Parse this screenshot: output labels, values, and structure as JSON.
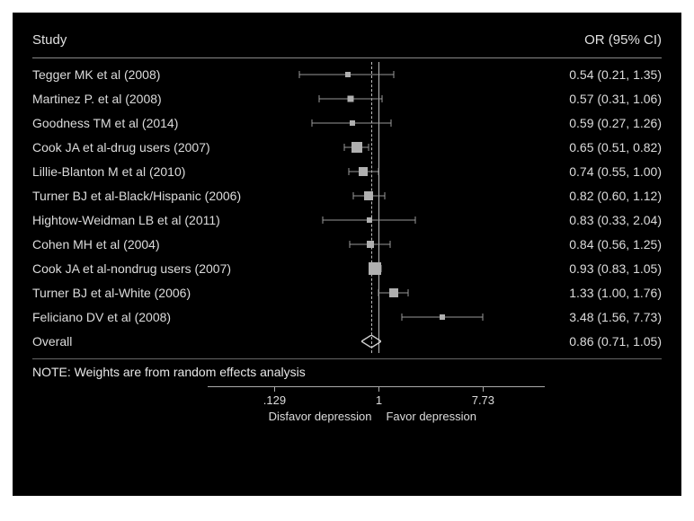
{
  "plot": {
    "type": "forest",
    "background_color": "#000000",
    "text_color": "#dcdcdc",
    "grid_color": "#888888",
    "point_color": "#b0b0b0",
    "ci_color": "#999999",
    "ref_line_color": "#bbbbbb",
    "font_family": "Arial",
    "font_size": 14,
    "header_left": "Study",
    "header_right": "OR (95% CI)",
    "overall_label": "Overall",
    "note": "NOTE: Weights are from random effects analysis",
    "axis": {
      "scale": "log",
      "ref": 1,
      "pooled": 0.86,
      "ticks": [
        0.129,
        1,
        7.73
      ],
      "tick_labels": [
        ".129",
        "1",
        "7.73"
      ],
      "label_left": "Disfavor depression",
      "label_right": "Favor depression",
      "plot_xmin": 0.1,
      "plot_xmax": 9.0
    },
    "studies": [
      {
        "label": "Tegger MK et al (2008)",
        "or": 0.54,
        "lo": 0.21,
        "hi": 1.35,
        "or_text": "0.54 (0.21, 1.35)",
        "wt": 5
      },
      {
        "label": "Martinez P. et al (2008)",
        "or": 0.57,
        "lo": 0.31,
        "hi": 1.06,
        "or_text": "0.57 (0.31, 1.06)",
        "wt": 7
      },
      {
        "label": "Goodness TM et al (2014)",
        "or": 0.59,
        "lo": 0.27,
        "hi": 1.26,
        "or_text": "0.59 (0.27, 1.26)",
        "wt": 6
      },
      {
        "label": "Cook JA et al-drug users (2007)",
        "or": 0.65,
        "lo": 0.51,
        "hi": 0.82,
        "or_text": "0.65 (0.51, 0.82)",
        "wt": 12
      },
      {
        "label": "Lillie-Blanton M et al (2010)",
        "or": 0.74,
        "lo": 0.55,
        "hi": 1.0,
        "or_text": "0.74 (0.55, 1.00)",
        "wt": 10
      },
      {
        "label": "Turner BJ et al-Black/Hispanic (2006)",
        "or": 0.82,
        "lo": 0.6,
        "hi": 1.12,
        "or_text": "0.82 (0.60, 1.12)",
        "wt": 10
      },
      {
        "label": "Hightow-Weidman LB et al (2011)",
        "or": 0.83,
        "lo": 0.33,
        "hi": 2.04,
        "or_text": "0.83 (0.33, 2.04)",
        "wt": 4
      },
      {
        "label": "Cohen MH et al (2004)",
        "or": 0.84,
        "lo": 0.56,
        "hi": 1.25,
        "or_text": "0.84 (0.56, 1.25)",
        "wt": 8
      },
      {
        "label": "Cook JA et al-nondrug users (2007)",
        "or": 0.93,
        "lo": 0.83,
        "hi": 1.05,
        "or_text": "0.93 (0.83, 1.05)",
        "wt": 14
      },
      {
        "label": "Turner BJ et al-White (2006)",
        "or": 1.33,
        "lo": 1.0,
        "hi": 1.76,
        "or_text": "1.33 (1.00, 1.76)",
        "wt": 10
      },
      {
        "label": "Feliciano DV et al (2008)",
        "or": 3.48,
        "lo": 1.56,
        "hi": 7.73,
        "or_text": "3.48 (1.56, 7.73)",
        "wt": 6
      }
    ],
    "overall": {
      "or": 0.86,
      "lo": 0.71,
      "hi": 1.05,
      "or_text": "0.86 (0.71, 1.05)"
    }
  }
}
